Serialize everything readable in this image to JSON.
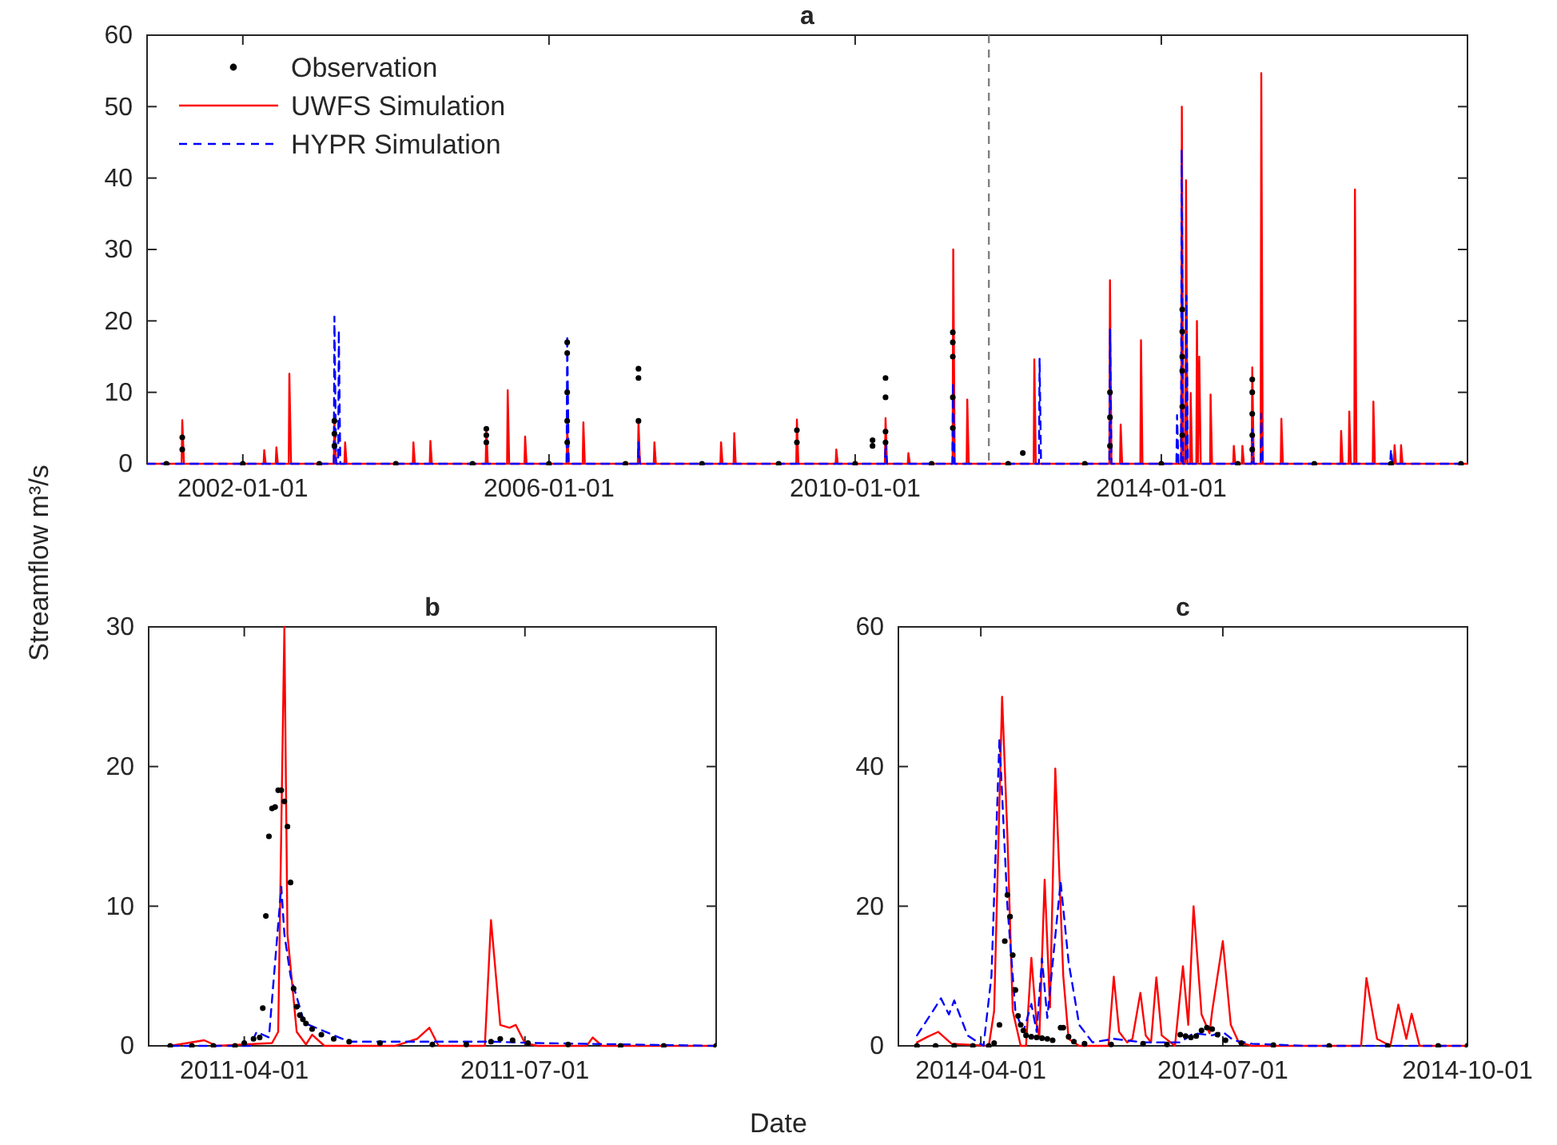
{
  "chart_data": [
    {
      "type": "line",
      "title": "a",
      "xlim": [
        "2000-10-01",
        "2018-01-01"
      ],
      "xticks": [
        "2002-01-01",
        "2006-01-01",
        "2010-01-01",
        "2014-01-01"
      ],
      "ylim": [
        0,
        60
      ],
      "yticks": [
        0,
        10,
        20,
        30,
        40,
        50,
        60
      ],
      "legend": "top left",
      "grid": false,
      "ref_lines": [
        {
          "axis": "x",
          "value": "2011-10-01",
          "color": "#808080",
          "line_style": "dashed"
        }
      ],
      "series": [
        {
          "name": "Observation",
          "type": "scatter",
          "marker": "circle",
          "color": "#000000",
          "x": [
            "2001-01-01",
            "2001-03-18",
            "2001-03-18",
            "2002-01-01",
            "2003-01-01",
            "2003-03-14",
            "2003-03-14",
            "2003-03-14",
            "2004-01-01",
            "2005-01-01",
            "2005-03-08",
            "2005-03-08",
            "2005-03-08",
            "2006-01-01",
            "2006-03-29",
            "2006-03-29",
            "2006-03-29",
            "2006-03-29",
            "2006-03-29",
            "2007-01-01",
            "2007-03-04",
            "2007-03-04",
            "2007-03-04",
            "2008-01-01",
            "2009-01-01",
            "2009-03-29",
            "2009-03-29",
            "2010-01-01",
            "2010-03-25",
            "2010-03-25",
            "2010-05-26",
            "2010-05-26",
            "2010-05-26",
            "2010-05-26",
            "2011-01-01",
            "2011-04-12",
            "2011-04-12",
            "2011-04-12",
            "2011-04-12",
            "2011-04-12",
            "2012-01-01",
            "2012-03-11",
            "2013-01-01",
            "2013-05-01",
            "2013-05-01",
            "2013-05-01",
            "2014-01-01",
            "2014-04-11",
            "2014-04-11",
            "2014-04-11",
            "2014-04-11",
            "2014-04-11",
            "2014-04-11",
            "2015-01-01",
            "2015-03-11",
            "2015-03-11",
            "2015-03-11",
            "2015-03-11",
            "2015-03-11",
            "2016-01-01",
            "2017-01-01",
            "2017-12-01"
          ],
          "values": [
            0,
            3.7,
            2,
            0,
            0,
            6,
            4.2,
            2.5,
            0,
            0,
            4.9,
            4,
            3,
            0,
            17,
            15.5,
            10,
            6,
            3,
            0,
            13.3,
            12,
            6,
            0,
            0,
            4.7,
            3,
            0,
            3.3,
            2.5,
            12,
            9.3,
            4.5,
            3,
            0,
            18.4,
            17,
            15,
            9.3,
            5,
            0,
            1.5,
            0,
            10,
            6.5,
            2.5,
            0,
            21.6,
            18.5,
            15,
            13,
            8,
            4,
            0,
            11.8,
            10,
            7,
            4,
            2,
            0,
            0,
            0
          ]
        },
        {
          "name": "UWFS Simulation",
          "type": "line",
          "line_style": "solid",
          "color": "#ff0000",
          "x": [
            "2000-10-01",
            "2001-03-15",
            "2001-03-18",
            "2001-03-26",
            "2002-04-10",
            "2002-04-13",
            "2002-04-20",
            "2002-06-07",
            "2002-06-10",
            "2002-06-17",
            "2002-08-08",
            "2002-08-11",
            "2002-08-19",
            "2003-03-11",
            "2003-03-14",
            "2003-03-22",
            "2003-05-01",
            "2003-05-04",
            "2003-05-11",
            "2004-03-22",
            "2004-03-25",
            "2004-04-01",
            "2004-06-11",
            "2004-06-14",
            "2004-06-21",
            "2005-03-05",
            "2005-03-08",
            "2005-03-15",
            "2005-06-15",
            "2005-06-18",
            "2005-06-25",
            "2005-09-06",
            "2005-09-09",
            "2005-09-16",
            "2006-03-26",
            "2006-03-29",
            "2006-04-05",
            "2006-06-11",
            "2006-06-14",
            "2006-06-21",
            "2007-03-01",
            "2007-03-04",
            "2007-03-11",
            "2007-05-16",
            "2007-05-19",
            "2007-05-26",
            "2008-03-29",
            "2008-04-01",
            "2008-04-08",
            "2008-05-31",
            "2008-06-03",
            "2008-06-10",
            "2009-03-26",
            "2009-03-29",
            "2009-04-05",
            "2009-09-30",
            "2009-10-03",
            "2009-10-10",
            "2010-05-23",
            "2010-05-26",
            "2010-06-02",
            "2010-09-09",
            "2010-09-12",
            "2010-09-19",
            "2011-04-11",
            "2011-04-14",
            "2011-04-21",
            "2011-06-17",
            "2011-06-20",
            "2011-06-27",
            "2012-05-02",
            "2012-05-05",
            "2012-05-12",
            "2013-04-28",
            "2013-05-01",
            "2013-05-08",
            "2013-06-18",
            "2013-06-21",
            "2013-06-28",
            "2013-09-23",
            "2013-09-26",
            "2013-10-03",
            "2014-04-06",
            "2014-04-09",
            "2014-04-16",
            "2014-04-26",
            "2014-04-29",
            "2014-05-06",
            "2014-05-18",
            "2014-05-21",
            "2014-05-28",
            "2014-06-17",
            "2014-06-20",
            "2014-06-25",
            "2014-07-01",
            "2014-07-08",
            "2014-08-22",
            "2014-08-24",
            "2014-08-31",
            "2014-12-10",
            "2014-12-13",
            "2014-12-20",
            "2015-01-20",
            "2015-01-23",
            "2015-01-30",
            "2015-03-08",
            "2015-03-11",
            "2015-03-18",
            "2015-04-20",
            "2015-04-23",
            "2015-04-30",
            "2015-07-25",
            "2015-07-28",
            "2015-08-04",
            "2016-05-05",
            "2016-05-08",
            "2016-05-15",
            "2016-06-13",
            "2016-06-16",
            "2016-06-23",
            "2016-07-10",
            "2016-07-13",
            "2016-07-20",
            "2016-10-06",
            "2016-10-09",
            "2016-10-16",
            "2017-01-15",
            "2017-01-18",
            "2017-01-25",
            "2017-02-15",
            "2017-02-18",
            "2017-02-25",
            "2018-01-01"
          ],
          "values": [
            0,
            0,
            6.1,
            0,
            0,
            1.9,
            0,
            0,
            2.3,
            0,
            0,
            12.6,
            0,
            0,
            6,
            0,
            0,
            3,
            0,
            0,
            3,
            0,
            0,
            3.2,
            0,
            0,
            5,
            0,
            0,
            10.3,
            0,
            0,
            3.8,
            0,
            0,
            5,
            0,
            0,
            5.8,
            0,
            0,
            6,
            0,
            0,
            3,
            0,
            0,
            3,
            0,
            0,
            4.3,
            0,
            0,
            6.2,
            0,
            0,
            2,
            0,
            0,
            6.4,
            0,
            0,
            1.5,
            0,
            0,
            30,
            0,
            0,
            9,
            0,
            0,
            14.6,
            0,
            0,
            25.7,
            0,
            0,
            5.5,
            0,
            0,
            17.3,
            0,
            0,
            50,
            0,
            0,
            39.7,
            0,
            0,
            9.9,
            0,
            0,
            20,
            0,
            15,
            0,
            0,
            9.7,
            0,
            0,
            2.5,
            0,
            0,
            2.5,
            0,
            0,
            13.5,
            0,
            0,
            54.7,
            0,
            0,
            6.3,
            0,
            0,
            4.6,
            0,
            0,
            7.3,
            0,
            0,
            38.4,
            0,
            0,
            8.7,
            0,
            0,
            2.6,
            0,
            0,
            2.6,
            0,
            0
          ]
        },
        {
          "name": "HYPR Simulation",
          "type": "line",
          "line_style": "dashed",
          "color": "#0000ff",
          "x": [
            "2000-10-01",
            "2003-03-11",
            "2003-03-14",
            "2003-03-22",
            "2003-04-01",
            "2003-04-04",
            "2003-04-11",
            "2006-03-26",
            "2006-03-29",
            "2006-04-05",
            "2007-03-01",
            "2007-03-04",
            "2007-03-11",
            "2010-05-23",
            "2010-05-26",
            "2010-06-02",
            "2011-04-10",
            "2011-04-13",
            "2011-04-20",
            "2012-05-27",
            "2012-05-30",
            "2012-06-06",
            "2013-04-28",
            "2013-05-01",
            "2013-05-08",
            "2014-03-14",
            "2014-03-17",
            "2014-03-24",
            "2014-04-05",
            "2014-04-08",
            "2014-04-15",
            "2014-04-28",
            "2014-05-01",
            "2014-05-08",
            "2015-03-08",
            "2015-03-11",
            "2015-03-18",
            "2015-04-20",
            "2015-04-23",
            "2015-04-30",
            "2016-12-28",
            "2017-01-01",
            "2017-01-08",
            "2018-01-01"
          ],
          "values": [
            0,
            0,
            20.6,
            0,
            0,
            18.7,
            0,
            0,
            18,
            0,
            0,
            3,
            0,
            0,
            3,
            0,
            0,
            11.4,
            0,
            0,
            14.8,
            0,
            0,
            18.8,
            0,
            0,
            6.8,
            0,
            0,
            44,
            0,
            0,
            23.5,
            0,
            0,
            5,
            0,
            0,
            7,
            0,
            0,
            2,
            0,
            0
          ]
        }
      ]
    },
    {
      "type": "line",
      "title": "b",
      "xlabel": "Date",
      "ylabel": "Streamflow m³/s",
      "xlim": [
        "2011-03-01",
        "2011-09-01"
      ],
      "xticks": [
        "2011-04-01",
        "2011-07-01"
      ],
      "ylim": [
        0,
        30
      ],
      "yticks": [
        0,
        10,
        20,
        30
      ],
      "grid": false,
      "series": [
        {
          "type": "scatter",
          "marker": "circle",
          "color": "#000000",
          "x": [
            "2011-03-08",
            "2011-03-15",
            "2011-03-22",
            "2011-03-29",
            "2011-04-01",
            "2011-04-04",
            "2011-04-06",
            "2011-04-07",
            "2011-04-08",
            "2011-04-09",
            "2011-04-10",
            "2011-04-11",
            "2011-04-12",
            "2011-04-13",
            "2011-04-14",
            "2011-04-15",
            "2011-04-16",
            "2011-04-17",
            "2011-04-18",
            "2011-04-19",
            "2011-04-20",
            "2011-04-21",
            "2011-04-23",
            "2011-04-26",
            "2011-04-30",
            "2011-05-05",
            "2011-05-15",
            "2011-06-01",
            "2011-06-12",
            "2011-06-20",
            "2011-06-23",
            "2011-06-27",
            "2011-07-02",
            "2011-07-15",
            "2011-08-01",
            "2011-08-15",
            "2011-09-01"
          ],
          "values": [
            0,
            0,
            0,
            0,
            0.2,
            0.5,
            0.6,
            2.7,
            9.3,
            15,
            17,
            17.1,
            18.3,
            18.3,
            17.5,
            15.7,
            11.7,
            4.1,
            2.8,
            2.2,
            1.9,
            1.6,
            1.2,
            0.8,
            0.5,
            0.3,
            0.2,
            0.1,
            0.1,
            0.3,
            0.5,
            0.4,
            0.2,
            0.1,
            0,
            0,
            0
          ]
        },
        {
          "type": "line",
          "line_style": "solid",
          "color": "#ff0000",
          "x": [
            "2011-03-08",
            "2011-03-19",
            "2011-03-23",
            "2011-04-10",
            "2011-04-12",
            "2011-04-14",
            "2011-04-15",
            "2011-04-18",
            "2011-04-21",
            "2011-04-23",
            "2011-04-27",
            "2011-05-20",
            "2011-05-27",
            "2011-05-31",
            "2011-06-03",
            "2011-06-18",
            "2011-06-20",
            "2011-06-23",
            "2011-06-26",
            "2011-06-28",
            "2011-07-01",
            "2011-07-05",
            "2011-07-21",
            "2011-07-23",
            "2011-07-26",
            "2011-09-01"
          ],
          "values": [
            0,
            0.4,
            0,
            0.2,
            1,
            30,
            8,
            1,
            0.1,
            0.8,
            0,
            0,
            0.5,
            1.3,
            0,
            0,
            9,
            1.5,
            1.3,
            1.5,
            0.2,
            0,
            0,
            0.6,
            0,
            0
          ]
        },
        {
          "type": "line",
          "line_style": "dashed",
          "color": "#0000ff",
          "x": [
            "2011-03-08",
            "2011-04-03",
            "2011-04-05",
            "2011-04-09",
            "2011-04-13",
            "2011-04-14",
            "2011-04-16",
            "2011-04-20",
            "2011-04-22",
            "2011-05-05",
            "2011-06-20",
            "2011-07-05",
            "2011-09-01"
          ],
          "values": [
            0,
            0,
            1,
            0.6,
            11.4,
            8,
            5,
            2,
            1.5,
            0.3,
            0.3,
            0.2,
            0
          ]
        }
      ]
    },
    {
      "type": "line",
      "title": "c",
      "xlim": [
        "2014-03-01",
        "2014-10-01"
      ],
      "xticks": [
        "2014-04-01",
        "2014-07-01",
        "2014-10-01"
      ],
      "ylim": [
        0,
        60
      ],
      "yticks": [
        0,
        20,
        40,
        60
      ],
      "grid": false,
      "series": [
        {
          "type": "scatter",
          "marker": "circle",
          "color": "#000000",
          "x": [
            "2014-03-08",
            "2014-03-15",
            "2014-03-22",
            "2014-03-29",
            "2014-04-04",
            "2014-04-06",
            "2014-04-08",
            "2014-04-10",
            "2014-04-11",
            "2014-04-12",
            "2014-04-13",
            "2014-04-14",
            "2014-04-15",
            "2014-04-16",
            "2014-04-17",
            "2014-04-18",
            "2014-04-20",
            "2014-04-22",
            "2014-04-24",
            "2014-04-26",
            "2014-04-28",
            "2014-05-01",
            "2014-05-02",
            "2014-05-04",
            "2014-05-06",
            "2014-05-10",
            "2014-05-20",
            "2014-06-01",
            "2014-06-10",
            "2014-06-15",
            "2014-06-17",
            "2014-06-19",
            "2014-06-21",
            "2014-06-23",
            "2014-06-25",
            "2014-06-27",
            "2014-06-29",
            "2014-07-02",
            "2014-07-08",
            "2014-07-20",
            "2014-08-10",
            "2014-09-01",
            "2014-09-20",
            "2014-10-01"
          ],
          "values": [
            0,
            0,
            0,
            0,
            0,
            0.4,
            3,
            15,
            21.6,
            18.5,
            13,
            8,
            4.3,
            3,
            2.2,
            1.5,
            1.3,
            1.2,
            1.1,
            1,
            0.8,
            2.6,
            2.6,
            1.3,
            0.6,
            0.3,
            0.2,
            0.3,
            0.2,
            1.6,
            1.4,
            1.2,
            1.4,
            2.2,
            2.6,
            2.4,
            1.6,
            0.8,
            0.4,
            0.1,
            0,
            0,
            0,
            0
          ]
        },
        {
          "type": "line",
          "line_style": "solid",
          "color": "#ff0000",
          "x": [
            "2014-03-08",
            "2014-03-12",
            "2014-03-16",
            "2014-03-21",
            "2014-04-04",
            "2014-04-06",
            "2014-04-09",
            "2014-04-11",
            "2014-04-13",
            "2014-04-16",
            "2014-04-18",
            "2014-04-20",
            "2014-04-22",
            "2014-04-23",
            "2014-04-25",
            "2014-04-27",
            "2014-04-29",
            "2014-05-02",
            "2014-05-04",
            "2014-05-08",
            "2014-05-19",
            "2014-05-21",
            "2014-05-23",
            "2014-05-26",
            "2014-05-28",
            "2014-05-31",
            "2014-06-02",
            "2014-06-04",
            "2014-06-06",
            "2014-06-08",
            "2014-06-13",
            "2014-06-16",
            "2014-06-18",
            "2014-06-20",
            "2014-06-23",
            "2014-06-26",
            "2014-06-27",
            "2014-07-01",
            "2014-07-04",
            "2014-07-07",
            "2014-07-12",
            "2014-08-22",
            "2014-08-24",
            "2014-08-28",
            "2014-09-02",
            "2014-09-05",
            "2014-09-08",
            "2014-09-10",
            "2014-09-13",
            "2014-10-01"
          ],
          "values": [
            0.5,
            1.3,
            2,
            0.3,
            0,
            5,
            50,
            30,
            5,
            0,
            0,
            12.6,
            3,
            1.3,
            23.8,
            5.5,
            39.7,
            10,
            1,
            0,
            0,
            9.9,
            2,
            0.5,
            1,
            7.6,
            1.5,
            0.5,
            9.8,
            1.5,
            0,
            11.4,
            3,
            20,
            4.5,
            1.8,
            5,
            15,
            3,
            0.5,
            0,
            0,
            9.7,
            1,
            0,
            5.9,
            1,
            4.6,
            0,
            0
          ]
        },
        {
          "type": "line",
          "line_style": "dashed",
          "color": "#0000ff",
          "x": [
            "2014-03-08",
            "2014-03-14",
            "2014-03-17",
            "2014-03-20",
            "2014-03-22",
            "2014-03-27",
            "2014-04-02",
            "2014-04-05",
            "2014-04-08",
            "2014-04-11",
            "2014-04-14",
            "2014-04-17",
            "2014-04-20",
            "2014-04-22",
            "2014-04-24",
            "2014-04-26",
            "2014-05-01",
            "2014-05-04",
            "2014-05-08",
            "2014-05-13",
            "2014-05-21",
            "2014-06-01",
            "2014-06-15",
            "2014-06-20",
            "2014-06-27",
            "2014-07-01",
            "2014-07-05",
            "2014-07-12",
            "2014-08-01",
            "2014-10-01"
          ],
          "values": [
            1.5,
            5,
            6.8,
            4.5,
            6.5,
            1.5,
            0,
            10,
            44,
            20,
            5,
            2,
            6,
            2,
            12.5,
            4,
            23.5,
            12,
            3,
            0.5,
            1,
            0.5,
            0.5,
            1.8,
            1.5,
            2,
            0.8,
            0.3,
            0,
            0
          ]
        }
      ]
    }
  ]
}
